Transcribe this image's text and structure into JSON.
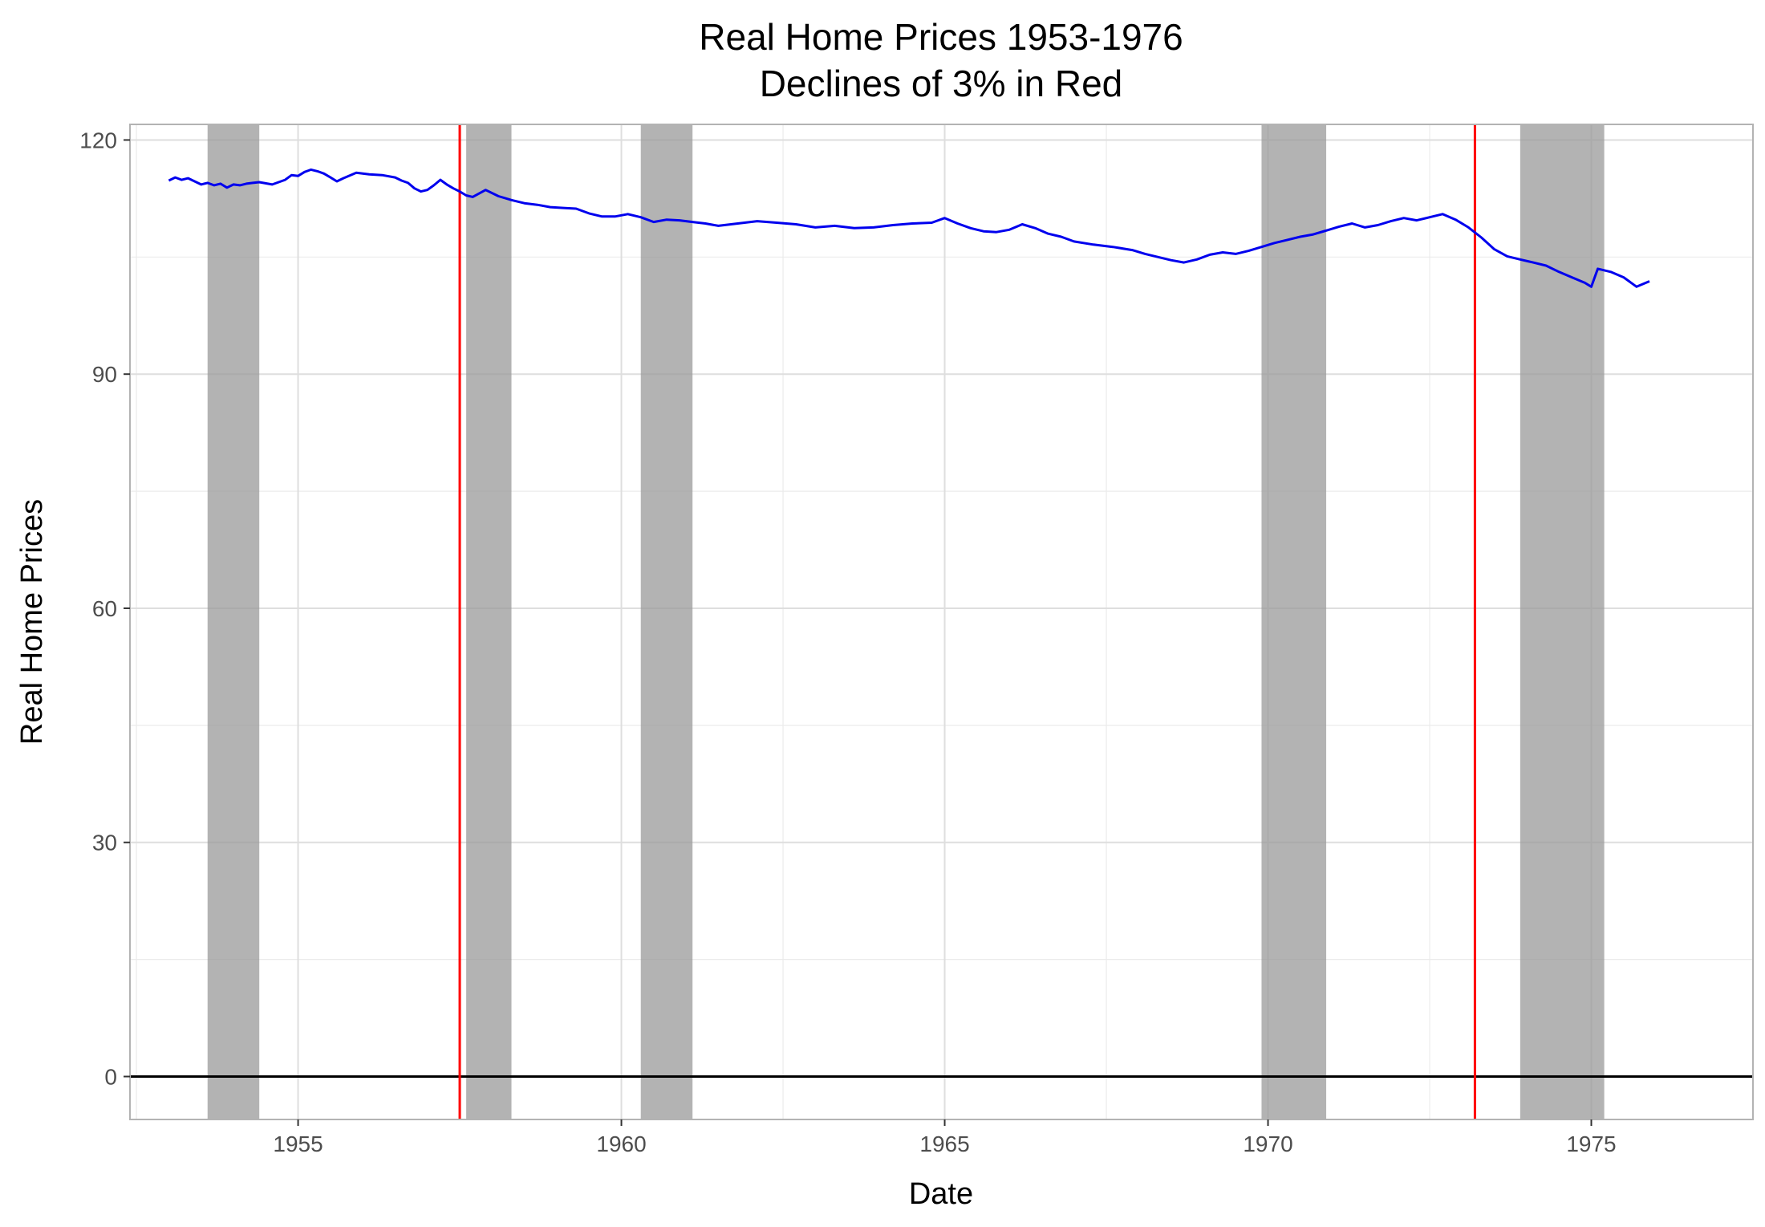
{
  "chart_data": {
    "type": "line",
    "title": "Real Home Prices 1953-1976",
    "subtitle": "Declines of 3% in Red",
    "xlabel": "Date",
    "ylabel": "Real Home Prices",
    "xlim": [
      1952.4,
      1977.5
    ],
    "ylim": [
      -5.5,
      122
    ],
    "x_ticks": [
      1955,
      1960,
      1965,
      1970,
      1975
    ],
    "x_tick_labels": [
      "1955",
      "1960",
      "1965",
      "1970",
      "1975"
    ],
    "y_ticks": [
      0,
      30,
      60,
      90,
      120
    ],
    "y_tick_labels": [
      "0",
      "30",
      "60",
      "90",
      "120"
    ],
    "grid": true,
    "zero_line": 0,
    "recessions": [
      [
        1953.6,
        1954.4
      ],
      [
        1957.6,
        1958.3
      ],
      [
        1960.3,
        1961.1
      ],
      [
        1969.9,
        1970.9
      ],
      [
        1973.9,
        1975.2
      ]
    ],
    "decline_markers": [
      1957.5,
      1973.2
    ],
    "series": [
      {
        "x": [
          1953.0,
          1953.1,
          1953.2,
          1953.3,
          1953.4,
          1953.5,
          1953.6,
          1953.7,
          1953.8,
          1953.9,
          1954.0,
          1954.1,
          1954.2,
          1954.3,
          1954.4,
          1954.6,
          1954.8,
          1954.9,
          1955.0,
          1955.1,
          1955.2,
          1955.3,
          1955.4,
          1955.5,
          1955.6,
          1955.7,
          1955.9,
          1956.1,
          1956.3,
          1956.5,
          1956.6,
          1956.7,
          1956.8,
          1956.9,
          1957.0,
          1957.1,
          1957.2,
          1957.3,
          1957.4,
          1957.5,
          1957.6,
          1957.7,
          1957.9,
          1958.1,
          1958.3,
          1958.5,
          1958.7,
          1958.9,
          1959.1,
          1959.3,
          1959.5,
          1959.7,
          1959.9,
          1960.1,
          1960.3,
          1960.5,
          1960.7,
          1960.9,
          1961.1,
          1961.3,
          1961.5,
          1961.8,
          1962.1,
          1962.4,
          1962.7,
          1963.0,
          1963.3,
          1963.6,
          1963.9,
          1964.2,
          1964.5,
          1964.8,
          1965.0,
          1965.2,
          1965.4,
          1965.6,
          1965.8,
          1966.0,
          1966.2,
          1966.4,
          1966.6,
          1966.8,
          1967.0,
          1967.3,
          1967.6,
          1967.9,
          1968.1,
          1968.3,
          1968.5,
          1968.7,
          1968.9,
          1969.1,
          1969.3,
          1969.5,
          1969.7,
          1969.9,
          1970.1,
          1970.3,
          1970.5,
          1970.7,
          1970.9,
          1971.1,
          1971.3,
          1971.5,
          1971.7,
          1971.9,
          1972.1,
          1972.3,
          1972.5,
          1972.7,
          1972.9,
          1973.1,
          1973.3,
          1973.5,
          1973.7,
          1973.9,
          1974.1,
          1974.3,
          1974.5,
          1974.7,
          1974.9,
          1975.0,
          1975.1,
          1975.3,
          1975.5,
          1975.7,
          1975.9
        ],
        "values": [
          114.8,
          115.2,
          114.9,
          115.1,
          114.7,
          114.3,
          114.5,
          114.2,
          114.4,
          113.9,
          114.3,
          114.2,
          114.4,
          114.5,
          114.6,
          114.3,
          114.9,
          115.5,
          115.4,
          115.9,
          116.2,
          116.0,
          115.7,
          115.2,
          114.7,
          115.1,
          115.8,
          115.6,
          115.5,
          115.2,
          114.8,
          114.5,
          113.8,
          113.4,
          113.6,
          114.2,
          114.9,
          114.3,
          113.8,
          113.4,
          112.9,
          112.7,
          113.6,
          112.8,
          112.3,
          111.9,
          111.7,
          111.4,
          111.3,
          111.2,
          110.6,
          110.2,
          110.2,
          110.5,
          110.1,
          109.5,
          109.8,
          109.7,
          109.5,
          109.3,
          109.0,
          109.3,
          109.6,
          109.4,
          109.2,
          108.8,
          109.0,
          108.7,
          108.8,
          109.1,
          109.3,
          109.4,
          110.0,
          109.3,
          108.7,
          108.3,
          108.2,
          108.5,
          109.2,
          108.7,
          108.0,
          107.6,
          107.0,
          106.6,
          106.3,
          105.9,
          105.4,
          105.0,
          104.6,
          104.3,
          104.7,
          105.3,
          105.6,
          105.4,
          105.8,
          106.3,
          106.8,
          107.2,
          107.6,
          107.9,
          108.4,
          108.9,
          109.3,
          108.8,
          109.1,
          109.6,
          110.0,
          109.7,
          110.1,
          110.5,
          109.8,
          108.8,
          107.5,
          106.0,
          105.1,
          104.7,
          104.3,
          103.9,
          103.1,
          102.4,
          101.7,
          101.2,
          103.5,
          103.1,
          102.4,
          101.2,
          101.9
        ]
      }
    ]
  }
}
